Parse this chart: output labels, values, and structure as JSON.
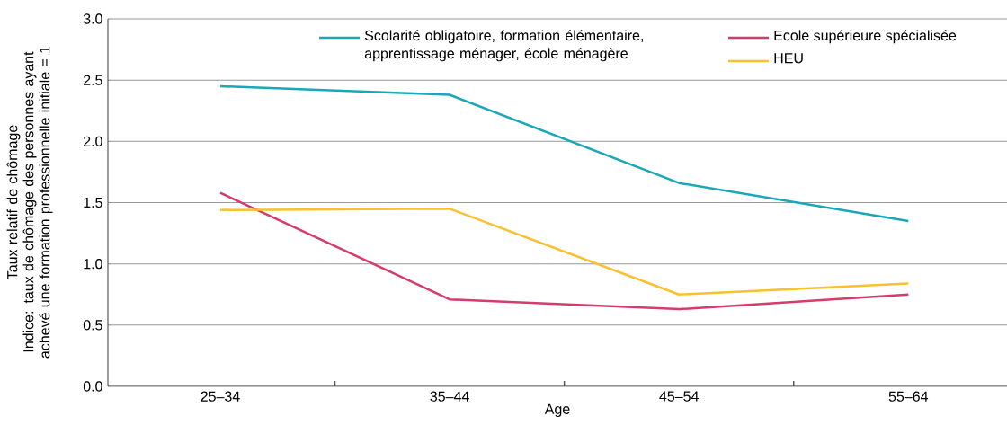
{
  "chart_data": {
    "type": "line",
    "xlabel": "Age",
    "ylabel": "Taux relatif de chômage",
    "annotations": [
      "Indice: taux de chômage des personnes ayant achevé une formation professionnelle initiale = 1"
    ],
    "categories": [
      "25–34",
      "35–44",
      "45–54",
      "55–64"
    ],
    "series": [
      {
        "name": "Scolarité obligatoire, formation élémentaire, apprentissage ménager, école ménagère",
        "color": "#1aa7b8",
        "values": [
          2.45,
          2.38,
          1.66,
          1.35
        ]
      },
      {
        "name": "Ecole supérieure spécialisée",
        "color": "#d63c6b",
        "values": [
          1.58,
          0.71,
          0.63,
          0.75
        ]
      },
      {
        "name": "HEU",
        "color": "#fbc02d",
        "values": [
          1.44,
          1.45,
          0.75,
          0.84
        ]
      }
    ],
    "ylim": [
      0,
      3
    ],
    "yticks": [
      {
        "value": 0,
        "label": "0.0"
      },
      {
        "value": 0.5,
        "label": "0.5"
      },
      {
        "value": 1,
        "label": "1.0"
      },
      {
        "value": 1.5,
        "label": "1.5"
      },
      {
        "value": 2,
        "label": "2.0"
      },
      {
        "value": 2.5,
        "label": "2.5"
      },
      {
        "value": 3,
        "label": "3.0"
      }
    ],
    "grid": "y",
    "legend": "top right",
    "marker": "none",
    "line_style": "solid"
  }
}
